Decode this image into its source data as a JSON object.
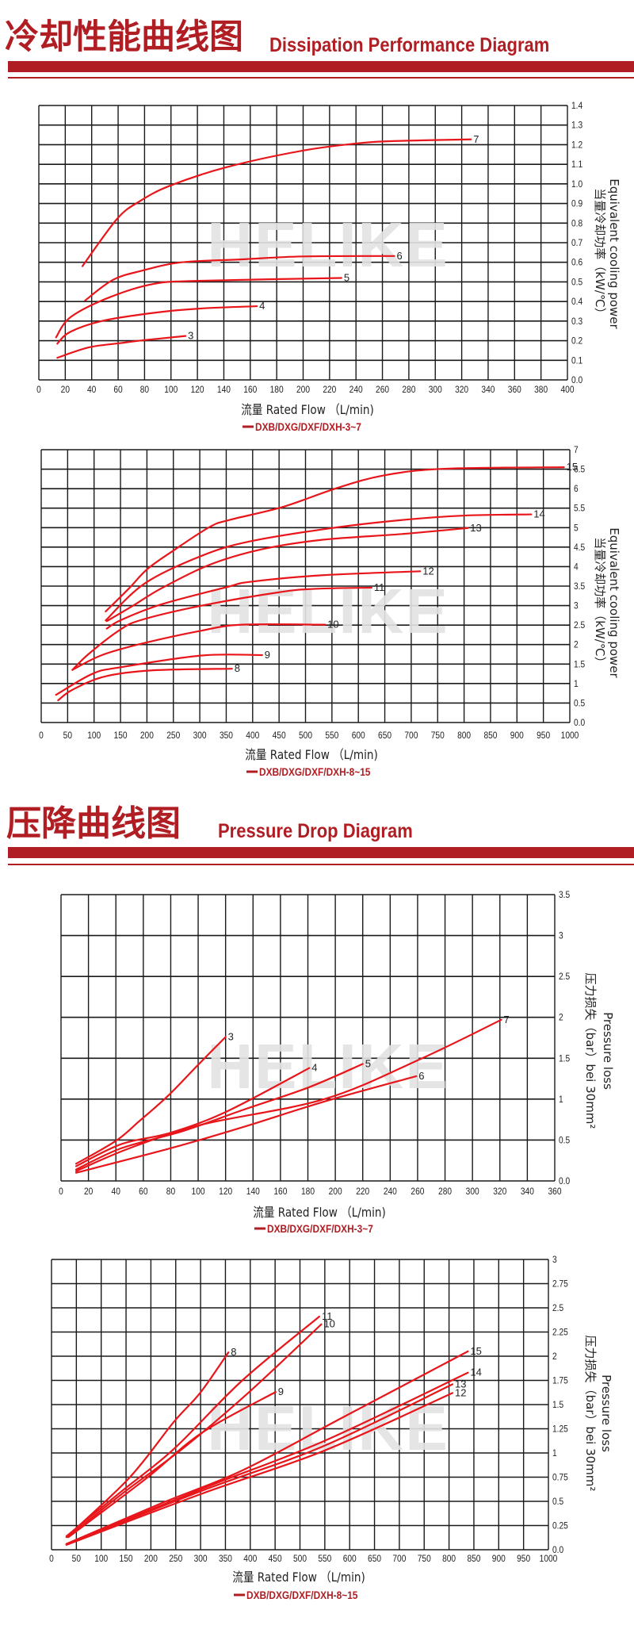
{
  "sections": [
    {
      "title_cn": "冷却性能曲线图",
      "title_en": "Dissipation Performance Diagram"
    },
    {
      "title_cn": "压降曲线图",
      "title_en": "Pressure Drop Diagram"
    }
  ],
  "watermark": "HELIKE",
  "colors": {
    "accent": "#b01e23",
    "curve": "#e8161b",
    "grid": "#1a1a1a",
    "watermark": "#e3e3e3"
  },
  "chart_data": [
    {
      "type": "line",
      "xlabel": "流量 Rated Flow （L/min)",
      "ylabel": [
        "Equivalent cooling power",
        "当量冷却功率（kW/℃）"
      ],
      "legend": "DXB/DXG/DXF/DXH-3~7",
      "xlim": [
        0,
        400
      ],
      "ylim": [
        0,
        1.4
      ],
      "grid": true,
      "xticks": [
        "0",
        "20",
        "40",
        "60",
        "80",
        "100",
        "120",
        "140",
        "160",
        "180",
        "200",
        "220",
        "240",
        "260",
        "280",
        "300",
        "320",
        "340",
        "360",
        "380",
        "400"
      ],
      "yticks": [
        "0.0",
        "0.1",
        "0.2",
        "0.3",
        "0.4",
        "0.5",
        "0.6",
        "0.7",
        "0.8",
        "0.9",
        "1.0",
        "1.1",
        "1.2",
        "1.3",
        "1.4"
      ],
      "series": [
        {
          "name": "3",
          "x": [
            14,
            38,
            62,
            80,
            111
          ],
          "y": [
            0.113,
            0.166,
            0.188,
            0.203,
            0.224
          ]
        },
        {
          "name": "4",
          "x": [
            14,
            24,
            50,
            93,
            124,
            165
          ],
          "y": [
            0.185,
            0.246,
            0.304,
            0.347,
            0.365,
            0.376
          ]
        },
        {
          "name": "5",
          "x": [
            13,
            24,
            53,
            87,
            124,
            229
          ],
          "y": [
            0.217,
            0.32,
            0.42,
            0.49,
            0.506,
            0.52
          ]
        },
        {
          "name": "6",
          "x": [
            35,
            56,
            78,
            108,
            154,
            200,
            269
          ],
          "y": [
            0.405,
            0.51,
            0.557,
            0.6,
            0.615,
            0.63,
            0.632
          ]
        },
        {
          "name": "7",
          "x": [
            33,
            59,
            76,
            99,
            142,
            200,
            246,
            276,
            327
          ],
          "y": [
            0.58,
            0.82,
            0.91,
            0.99,
            1.085,
            1.17,
            1.21,
            1.22,
            1.227
          ]
        }
      ]
    },
    {
      "type": "line",
      "xlabel": "流量 Rated Flow （L/min)",
      "ylabel": [
        "Equivalent cooling power",
        "当量冷却功率（kW/℃）"
      ],
      "legend": "DXB/DXG/DXF/DXH-8~15",
      "xlim": [
        0,
        1000
      ],
      "ylim": [
        0,
        7
      ],
      "grid": true,
      "xticks": [
        "0",
        "50",
        "100",
        "150",
        "200",
        "250",
        "300",
        "350",
        "400",
        "450",
        "500",
        "550",
        "600",
        "650",
        "700",
        "750",
        "800",
        "850",
        "900",
        "950",
        "1000"
      ],
      "yticks": [
        "0.0",
        "0.5",
        "1",
        "1.5",
        "2",
        "2.5",
        "3",
        "3.5",
        "4",
        "4.5",
        "5",
        "5.5",
        "6",
        "6.5",
        "7"
      ],
      "series": [
        {
          "name": "8",
          "x": [
            32,
            59,
            120,
            212,
            361
          ],
          "y": [
            0.57,
            0.84,
            1.18,
            1.34,
            1.38
          ]
        },
        {
          "name": "9",
          "x": [
            28,
            97,
            151,
            304,
            418
          ],
          "y": [
            0.71,
            1.25,
            1.42,
            1.72,
            1.73
          ]
        },
        {
          "name": "10",
          "x": [
            59,
            113,
            189,
            304,
            380,
            537
          ],
          "y": [
            1.35,
            1.72,
            2.02,
            2.36,
            2.51,
            2.51
          ]
        },
        {
          "name": "11",
          "x": [
            59,
            89,
            147,
            189,
            304,
            449,
            518,
            625
          ],
          "y": [
            1.35,
            1.75,
            2.36,
            2.63,
            3.0,
            3.34,
            3.43,
            3.46
          ]
        },
        {
          "name": "12",
          "x": [
            124,
            151,
            227,
            350,
            396,
            533,
            717
          ],
          "y": [
            2.41,
            2.63,
            3.03,
            3.47,
            3.61,
            3.78,
            3.88
          ]
        },
        {
          "name": "13",
          "x": [
            124,
            174,
            227,
            319,
            419,
            533,
            686,
            807
          ],
          "y": [
            2.6,
            3.0,
            3.44,
            4.05,
            4.45,
            4.69,
            4.84,
            4.99
          ]
        },
        {
          "name": "14",
          "x": [
            122,
            196,
            304,
            396,
            550,
            686,
            801,
            927
          ],
          "y": [
            2.62,
            3.57,
            4.28,
            4.65,
            4.99,
            5.2,
            5.31,
            5.34
          ]
        },
        {
          "name": "15",
          "x": [
            122,
            166,
            201,
            251,
            319,
            357,
            457,
            556,
            648,
            763,
            989
          ],
          "y": [
            2.85,
            3.44,
            3.94,
            4.42,
            5.02,
            5.2,
            5.53,
            6.0,
            6.34,
            6.51,
            6.55
          ]
        }
      ]
    },
    {
      "type": "line",
      "xlabel": "流量 Rated Flow （L/min)",
      "ylabel": [
        "Pressure loss",
        "压力损失（bar）bei 30mm²"
      ],
      "legend": "DXB/DXG/DXF/DXH-3~7",
      "xlim": [
        0,
        360
      ],
      "ylim": [
        0,
        3.5
      ],
      "grid": true,
      "xticks": [
        "0",
        "20",
        "40",
        "60",
        "80",
        "100",
        "120",
        "140",
        "160",
        "180",
        "200",
        "220",
        "240",
        "260",
        "280",
        "300",
        "320",
        "340",
        "360"
      ],
      "yticks": [
        "0.0",
        "0.5",
        "1",
        "1.5",
        "2",
        "2.5",
        "3",
        "3.5"
      ],
      "series": [
        {
          "name": "3",
          "x": [
            11,
            40,
            57,
            78,
            100,
            120
          ],
          "y": [
            0.21,
            0.49,
            0.73,
            1.04,
            1.42,
            1.76
          ]
        },
        {
          "name": "4",
          "x": [
            11,
            44,
            80,
            121,
            181
          ],
          "y": [
            0.18,
            0.45,
            0.59,
            0.85,
            1.38
          ]
        },
        {
          "name": "5",
          "x": [
            11,
            44,
            89,
            133,
            180,
            220
          ],
          "y": [
            0.14,
            0.4,
            0.61,
            0.87,
            1.14,
            1.43
          ]
        },
        {
          "name": "6",
          "x": [
            11,
            80,
            133,
            192,
            259
          ],
          "y": [
            0.1,
            0.4,
            0.66,
            0.97,
            1.28
          ]
        },
        {
          "name": "7",
          "x": [
            11,
            50,
            103,
            192,
            262,
            321
          ],
          "y": [
            0.12,
            0.4,
            0.69,
            1.0,
            1.49,
            1.97
          ]
        }
      ]
    },
    {
      "type": "line",
      "xlabel": "流量 Rated Flow （L/min)",
      "ylabel": [
        "Pressure loss",
        "压力损失（bar）bei 30mm²"
      ],
      "legend": "DXB/DXG/DXF/DXH-8~15",
      "xlim": [
        0,
        1000
      ],
      "ylim": [
        0,
        3
      ],
      "grid": true,
      "xticks": [
        "0",
        "50",
        "100",
        "150",
        "200",
        "250",
        "300",
        "350",
        "400",
        "450",
        "500",
        "550",
        "600",
        "650",
        "700",
        "750",
        "800",
        "850",
        "900",
        "950",
        "1000"
      ],
      "yticks": [
        "0.0",
        "0.25",
        "0.5",
        "0.75",
        "1",
        "1.25",
        "1.5",
        "1.75",
        "2",
        "2.25",
        "2.5",
        "2.75",
        "3"
      ],
      "series": [
        {
          "name": "8",
          "x": [
            30,
            156,
            246,
            299,
            356
          ],
          "y": [
            0.13,
            0.74,
            1.32,
            1.62,
            2.04
          ]
        },
        {
          "name": "9",
          "x": [
            34,
            189,
            303,
            451
          ],
          "y": [
            0.13,
            0.73,
            1.21,
            1.63
          ]
        },
        {
          "name": "10",
          "x": [
            33,
            140,
            270,
            400,
            543
          ],
          "y": [
            0.13,
            0.57,
            1.07,
            1.64,
            2.33
          ]
        },
        {
          "name": "11",
          "x": [
            30,
            140,
            246,
            384,
            539
          ],
          "y": [
            0.14,
            0.6,
            1.04,
            1.75,
            2.41
          ]
        },
        {
          "name": "12",
          "x": [
            30,
            303,
            547,
            807
          ],
          "y": [
            0.05,
            0.58,
            1.02,
            1.62
          ]
        },
        {
          "name": "13",
          "x": [
            30,
            303,
            547,
            807
          ],
          "y": [
            0.055,
            0.61,
            1.07,
            1.71
          ]
        },
        {
          "name": "14",
          "x": [
            30,
            303,
            547,
            838
          ],
          "y": [
            0.055,
            0.63,
            1.12,
            1.83
          ]
        },
        {
          "name": "15",
          "x": [
            30,
            221,
            384,
            587,
            838
          ],
          "y": [
            0.06,
            0.48,
            0.82,
            1.37,
            2.05
          ]
        }
      ]
    }
  ]
}
